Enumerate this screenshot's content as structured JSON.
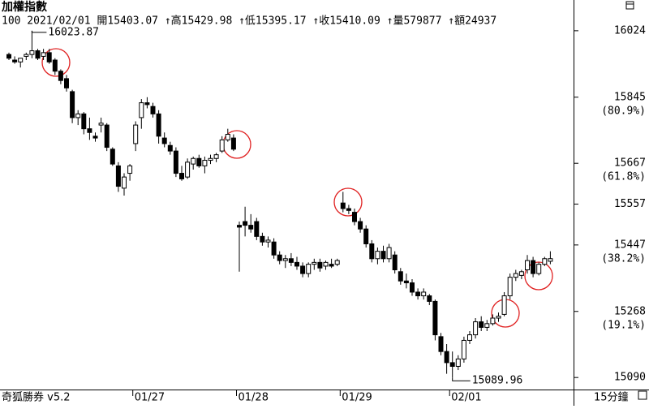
{
  "chart_data": {
    "type": "candlestick",
    "title": "加權指數",
    "info": "100 2021/02/01 開15403.07 ↑高15429.98 ↑低15395.17 ↑收15410.09 ↑量579877 ↑額24937",
    "footer_left": "奇狐勝券 v5.2",
    "period": "15分鐘",
    "up_color": "#ffffff",
    "down_color": "#000000",
    "edge_color": "#000000",
    "categories": [
      null,
      null,
      null,
      null,
      null,
      null,
      null,
      null,
      null,
      null,
      null,
      null,
      null,
      null,
      null,
      null,
      null,
      null,
      null,
      null,
      null,
      null,
      "01/27",
      null,
      null,
      null,
      null,
      null,
      null,
      null,
      null,
      null,
      null,
      null,
      null,
      null,
      null,
      null,
      null,
      null,
      "01/28",
      null,
      null,
      null,
      null,
      null,
      null,
      null,
      null,
      null,
      null,
      null,
      null,
      null,
      null,
      null,
      null,
      null,
      "01/29",
      null,
      null,
      null,
      null,
      null,
      null,
      null,
      null,
      null,
      null,
      null,
      null,
      null,
      null,
      null,
      null,
      null,
      null,
      "02/01",
      null,
      null,
      null,
      null,
      null,
      null,
      null,
      null,
      null,
      null,
      null,
      null,
      null,
      null,
      null,
      null,
      null
    ],
    "open": [
      15960,
      15945,
      15940,
      15955,
      15960,
      15970,
      15955,
      15965,
      15945,
      15915,
      15895,
      15860,
      15790,
      15800,
      15760,
      15740,
      15770,
      15770,
      15705,
      15660,
      15600,
      15640,
      15720,
      15790,
      15830,
      15820,
      15800,
      15735,
      15715,
      15700,
      15640,
      15630,
      15665,
      15680,
      15660,
      15675,
      15680,
      15700,
      15730,
      15735,
      15500,
      15510,
      15500,
      15510,
      15470,
      15455,
      15455,
      15420,
      15405,
      15410,
      15400,
      15390,
      15370,
      15395,
      15400,
      15390,
      15395,
      15395,
      15560,
      15545,
      15535,
      15510,
      15490,
      15450,
      15410,
      15430,
      15410,
      15420,
      15375,
      15350,
      15345,
      15320,
      15310,
      15310,
      15295,
      15200,
      15160,
      15130,
      15120,
      15140,
      15190,
      15205,
      15240,
      15225,
      15235,
      15250,
      15260,
      15310,
      15360,
      15365,
      15380,
      15405,
      15370,
      15395,
      15403.07
    ],
    "high": [
      15965,
      15955,
      15950,
      15965,
      16023.87,
      15975,
      15975,
      15975,
      15950,
      15920,
      15905,
      15865,
      15810,
      15805,
      15790,
      15750,
      15790,
      15775,
      15710,
      15670,
      15640,
      15665,
      15780,
      15840,
      15845,
      15830,
      15810,
      15750,
      15725,
      15710,
      15660,
      15680,
      15685,
      15690,
      15685,
      15690,
      15695,
      15740,
      15760,
      15745,
      15510,
      15550,
      15530,
      15520,
      15480,
      15470,
      15465,
      15430,
      15420,
      15425,
      15415,
      15400,
      15400,
      15410,
      15410,
      15405,
      15410,
      15410,
      15590,
      15555,
      15545,
      15520,
      15500,
      15460,
      15440,
      15445,
      15450,
      15430,
      15385,
      15370,
      15355,
      15330,
      15330,
      15315,
      15300,
      15210,
      15180,
      15160,
      15150,
      15200,
      15215,
      15250,
      15255,
      15245,
      15260,
      15265,
      15320,
      15370,
      15380,
      15380,
      15420,
      15415,
      15400,
      15415,
      15429.98
    ],
    "low": [
      15945,
      15935,
      15925,
      15945,
      15950,
      15945,
      15945,
      15935,
      15905,
      15880,
      15860,
      15775,
      15770,
      15745,
      15730,
      15725,
      15750,
      15700,
      15660,
      15590,
      15580,
      15620,
      15700,
      15760,
      15815,
      15790,
      15720,
      15710,
      15690,
      15630,
      15620,
      15625,
      15650,
      15655,
      15640,
      15665,
      15670,
      15695,
      15725,
      15700,
      15375,
      15470,
      15480,
      15460,
      15445,
      15440,
      15410,
      15395,
      15385,
      15390,
      15380,
      15360,
      15360,
      15380,
      15375,
      15380,
      15385,
      15390,
      15535,
      15530,
      15500,
      15480,
      15440,
      15400,
      15395,
      15400,
      15400,
      15370,
      15340,
      15330,
      15310,
      15300,
      15300,
      15285,
      15190,
      15150,
      15100,
      15089.96,
      15110,
      15130,
      15180,
      15195,
      15215,
      15215,
      15230,
      15240,
      15255,
      15300,
      15350,
      15355,
      15370,
      15360,
      15365,
      15390,
      15395.17
    ],
    "close": [
      15950,
      15940,
      15950,
      15960,
      15970,
      15950,
      15965,
      15940,
      15915,
      15890,
      15870,
      15790,
      15800,
      15760,
      15750,
      15735,
      15775,
      15710,
      15665,
      15605,
      15630,
      15660,
      15770,
      15830,
      15825,
      15800,
      15740,
      15720,
      15700,
      15640,
      15625,
      15670,
      15680,
      15660,
      15675,
      15680,
      15690,
      15730,
      15745,
      15705,
      15495,
      15500,
      15490,
      15470,
      15455,
      15460,
      15420,
      15405,
      15410,
      15400,
      15390,
      15370,
      15395,
      15400,
      15385,
      15400,
      15390,
      15405,
      15545,
      15540,
      15510,
      15490,
      15450,
      15410,
      15430,
      15410,
      15440,
      15380,
      15350,
      15345,
      15320,
      15310,
      15320,
      15295,
      15205,
      15160,
      15130,
      15120,
      15140,
      15190,
      15205,
      15240,
      15225,
      15235,
      15250,
      15255,
      15310,
      15360,
      15370,
      15375,
      15405,
      15370,
      15395,
      15410,
      15410.09
    ],
    "ylim": [
      15062,
      16074
    ],
    "yticks": [
      16024,
      15845,
      15667,
      15557,
      15447,
      15268,
      15090
    ],
    "ytick_percent": [
      null,
      "(80.9%)",
      "(61.8%)",
      null,
      "(38.2%)",
      "(19.1%)",
      null
    ]
  }
}
